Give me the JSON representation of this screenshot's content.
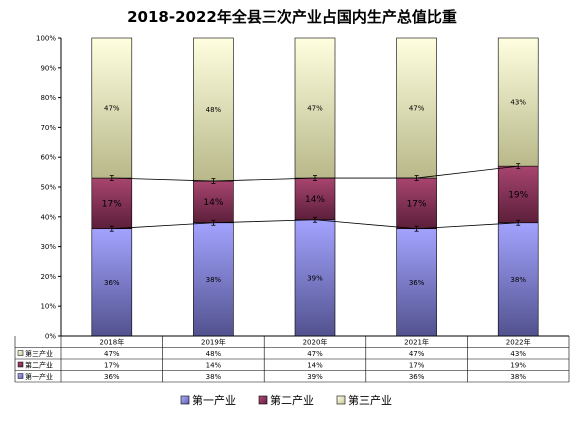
{
  "chart_data": {
    "type": "bar",
    "stacked": true,
    "title": "2018-2022年全县三次产业占国内生产总值比重",
    "categories": [
      "2018年",
      "2019年",
      "2020年",
      "2021年",
      "2022年"
    ],
    "y_ticks": [
      "0%",
      "10%",
      "20%",
      "30%",
      "40%",
      "50%",
      "60%",
      "70%",
      "80%",
      "90%",
      "100%"
    ],
    "ylim": [
      0,
      100
    ],
    "series": [
      {
        "name": "第一产业",
        "values": [
          36,
          38,
          39,
          36,
          38
        ],
        "labels": [
          "36%",
          "38%",
          "39%",
          "36%",
          "38%"
        ],
        "color": "#9999ff"
      },
      {
        "name": "第二产业",
        "values": [
          17,
          14,
          14,
          17,
          19
        ],
        "labels": [
          "17%",
          "14%",
          "14%",
          "17%",
          "19%"
        ],
        "color": "#993366"
      },
      {
        "name": "第三产业",
        "values": [
          47,
          48,
          47,
          47,
          43
        ],
        "labels": [
          "47%",
          "48%",
          "47%",
          "47%",
          "43%"
        ],
        "color": "#ffffcc"
      }
    ],
    "legend_position": "bottom",
    "grid": false,
    "data_table": true
  }
}
